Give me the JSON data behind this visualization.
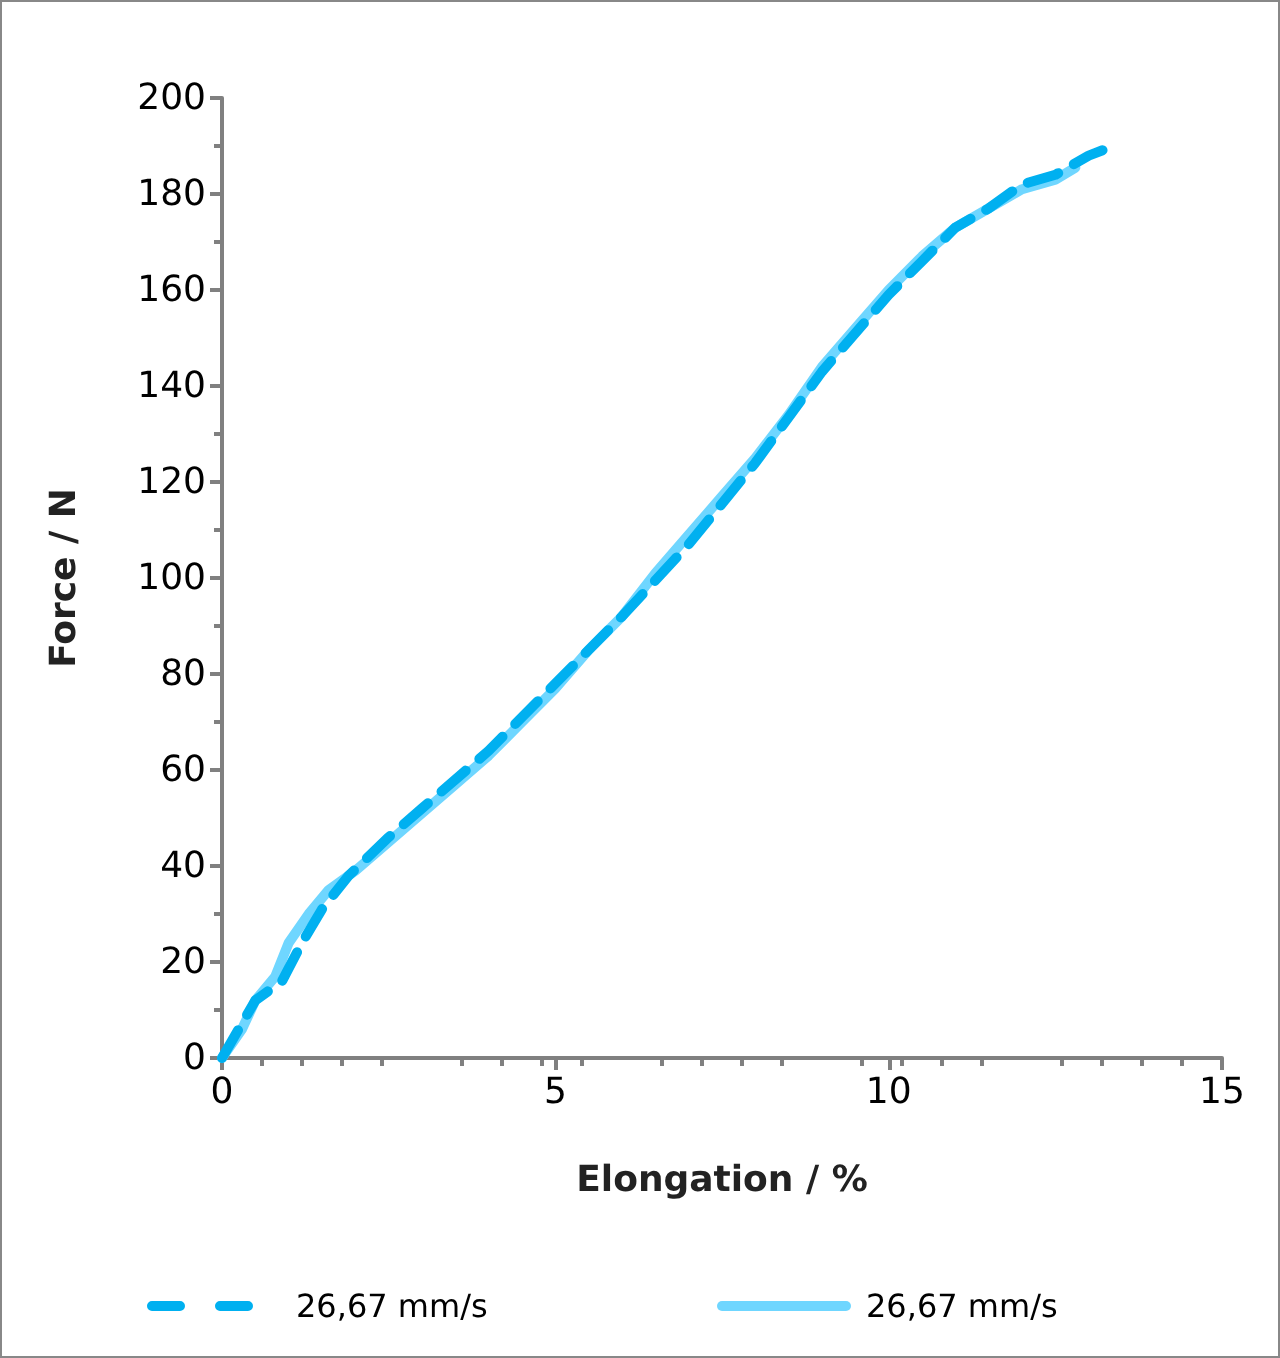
{
  "chart_data": {
    "type": "line",
    "xlabel": "Elongation / %",
    "ylabel": "Force / N",
    "xlim": [
      0,
      15
    ],
    "xticks": [
      0,
      5,
      10,
      15
    ],
    "ylim": [
      0,
      200
    ],
    "yticks": [
      0,
      20,
      40,
      60,
      80,
      100,
      120,
      140,
      160,
      180,
      200
    ],
    "grid": false,
    "legend": "bottom",
    "marker": "none",
    "series": [
      {
        "name": "26,67 mm/s",
        "color": "#00b0f0",
        "line_style": "dashed",
        "x": [
          0,
          0.5,
          0.9,
          1.2,
          1.5,
          1.9,
          2.5,
          3,
          4,
          5,
          6,
          7,
          8,
          9,
          10,
          10.5,
          11,
          11.5,
          12,
          12.5,
          13,
          13.3
        ],
        "values": [
          0,
          12,
          16,
          24,
          31,
          38,
          46,
          52,
          64,
          78,
          92,
          107,
          124,
          143,
          159,
          166,
          173,
          177,
          182,
          184,
          188,
          189.6
        ]
      },
      {
        "name": "26,67 mm/s",
        "color": "#6fd6ff",
        "line_style": "solid",
        "x": [
          0,
          0.3,
          0.5,
          0.8,
          1,
          1.3,
          1.6,
          2,
          2.5,
          3,
          3.5,
          4,
          4.5,
          5,
          5.5,
          6,
          6.5,
          7,
          7.5,
          8,
          8.5,
          9,
          9.5,
          10,
          10.5,
          11,
          11.5,
          12,
          12.5,
          12.8
        ],
        "values": [
          0,
          6,
          12,
          17,
          24,
          30,
          35,
          39,
          45,
          51,
          57,
          63,
          70,
          77,
          85,
          92,
          101,
          109,
          117,
          125,
          134,
          144,
          152,
          160,
          167,
          173,
          177,
          181,
          183,
          185.5
        ]
      }
    ]
  }
}
